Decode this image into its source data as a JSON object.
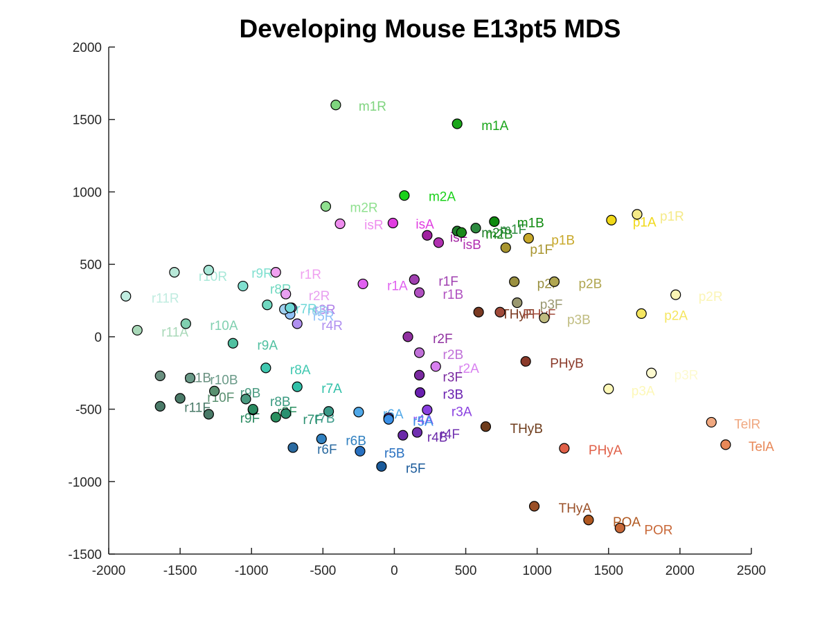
{
  "chart_data": {
    "type": "scatter",
    "title": "Developing Mouse E13pt5 MDS",
    "xlabel": "",
    "ylabel": "",
    "xlim": [
      -2000,
      2500
    ],
    "ylim": [
      -1500,
      2000
    ],
    "xticks": [
      "-2000",
      "-1500",
      "-1000",
      "-500",
      "0",
      "500",
      "1000",
      "1500",
      "2000",
      "2500"
    ],
    "yticks": [
      "2000",
      "1500",
      "1000",
      "500",
      "0",
      "-500",
      "-1000",
      "-1500"
    ],
    "xtick_values": [
      -2000,
      -1500,
      -1000,
      -500,
      0,
      500,
      1000,
      1500,
      2000,
      2500
    ],
    "ytick_values": [
      2000,
      1500,
      1000,
      500,
      0,
      -500,
      -1000,
      -1500
    ],
    "grid": false,
    "points": [
      {
        "label": "m1R",
        "x": -410,
        "y": 1600,
        "color": "#7fd47f"
      },
      {
        "label": "m1A",
        "x": 440,
        "y": 1470,
        "color": "#1aa61a"
      },
      {
        "label": "m2A",
        "x": 70,
        "y": 975,
        "color": "#1ad11a"
      },
      {
        "label": "m2R",
        "x": -480,
        "y": 900,
        "color": "#8fe08f"
      },
      {
        "label": "isR",
        "x": -380,
        "y": 780,
        "color": "#ee8cee"
      },
      {
        "label": "isA",
        "x": -10,
        "y": 785,
        "color": "#e03ce0"
      },
      {
        "label": "isF",
        "x": 230,
        "y": 700,
        "color": "#a020a0"
      },
      {
        "label": "isB",
        "x": 310,
        "y": 650,
        "color": "#b030b0"
      },
      {
        "label": "m2F",
        "x": 440,
        "y": 730,
        "color": "#1f7a2a"
      },
      {
        "label": "m2B",
        "x": 470,
        "y": 720,
        "color": "#1a8a1a"
      },
      {
        "label": "m1F",
        "x": 570,
        "y": 750,
        "color": "#2e8b40"
      },
      {
        "label": "m1B",
        "x": 700,
        "y": 795,
        "color": "#0f8a0f"
      },
      {
        "label": "p1F",
        "x": 780,
        "y": 615,
        "color": "#a8952f"
      },
      {
        "label": "p1B",
        "x": 940,
        "y": 680,
        "color": "#c8a82a"
      },
      {
        "label": "p1A",
        "x": 1520,
        "y": 805,
        "color": "#f0d818"
      },
      {
        "label": "p1R",
        "x": 1700,
        "y": 845,
        "color": "#f5ea88"
      },
      {
        "label": "p2F",
        "x": 840,
        "y": 380,
        "color": "#9a9040"
      },
      {
        "label": "p2B",
        "x": 1120,
        "y": 380,
        "color": "#b0a650"
      },
      {
        "label": "p3F",
        "x": 860,
        "y": 235,
        "color": "#9a9870"
      },
      {
        "label": "p3B",
        "x": 1050,
        "y": 130,
        "color": "#c0bc80"
      },
      {
        "label": "p2R",
        "x": 1970,
        "y": 290,
        "color": "#fbf5b5"
      },
      {
        "label": "p2A",
        "x": 1730,
        "y": 160,
        "color": "#f5e660"
      },
      {
        "label": "p3A",
        "x": 1500,
        "y": -360,
        "color": "#fdf8b8"
      },
      {
        "label": "p3R",
        "x": 1800,
        "y": -250,
        "color": "#fdfad0"
      },
      {
        "label": "THyF",
        "x": 590,
        "y": 170,
        "color": "#7a3a22"
      },
      {
        "label": "PHyF",
        "x": 740,
        "y": 170,
        "color": "#a04a3a"
      },
      {
        "label": "PHyB",
        "x": 920,
        "y": -170,
        "color": "#8a3a2a"
      },
      {
        "label": "THyB",
        "x": 640,
        "y": -620,
        "color": "#6e3c1c"
      },
      {
        "label": "PHyA",
        "x": 1190,
        "y": -770,
        "color": "#e06048"
      },
      {
        "label": "TelR",
        "x": 2220,
        "y": -590,
        "color": "#f0a880"
      },
      {
        "label": "TelA",
        "x": 2320,
        "y": -745,
        "color": "#e88858"
      },
      {
        "label": "THyA",
        "x": 980,
        "y": -1170,
        "color": "#9a5028"
      },
      {
        "label": "POA",
        "x": 1360,
        "y": -1265,
        "color": "#b05820"
      },
      {
        "label": "POR",
        "x": 1580,
        "y": -1320,
        "color": "#c86838"
      },
      {
        "label": "r1R",
        "x": -830,
        "y": 445,
        "color": "#f0a0f0"
      },
      {
        "label": "r1A",
        "x": -220,
        "y": 365,
        "color": "#e060f0"
      },
      {
        "label": "r1F",
        "x": 140,
        "y": 395,
        "color": "#a040b0"
      },
      {
        "label": "r1B",
        "x": 175,
        "y": 305,
        "color": "#b050c0"
      },
      {
        "label": "r2R",
        "x": -760,
        "y": 295,
        "color": "#e8a0f0"
      },
      {
        "label": "r2F",
        "x": 95,
        "y": 0,
        "color": "#9030a0"
      },
      {
        "label": "r2B",
        "x": 175,
        "y": -110,
        "color": "#c070d8"
      },
      {
        "label": "r2A",
        "x": 290,
        "y": -205,
        "color": "#d880f0"
      },
      {
        "label": "r3F",
        "x": 175,
        "y": -265,
        "color": "#7a2aa0"
      },
      {
        "label": "r3B",
        "x": 180,
        "y": -385,
        "color": "#6a20b0"
      },
      {
        "label": "r3A",
        "x": 230,
        "y": -505,
        "color": "#8a40e0"
      },
      {
        "label": "r3R",
        "x": -720,
        "y": 200,
        "color": "#b080e8"
      },
      {
        "label": "r4R",
        "x": -680,
        "y": 90,
        "color": "#b090f0"
      },
      {
        "label": "r4A",
        "x": -40,
        "y": -560,
        "color": "#9050f0"
      },
      {
        "label": "r4F",
        "x": 160,
        "y": -660,
        "color": "#7030b0"
      },
      {
        "label": "r4B",
        "x": 60,
        "y": -680,
        "color": "#6a28a8"
      },
      {
        "label": "r5R",
        "x": -730,
        "y": 155,
        "color": "#90c0f8"
      },
      {
        "label": "r5A",
        "x": -40,
        "y": -570,
        "color": "#3a90e8"
      },
      {
        "label": "r5B",
        "x": -240,
        "y": -790,
        "color": "#2870c0"
      },
      {
        "label": "r5F",
        "x": -90,
        "y": -895,
        "color": "#1a5a9a"
      },
      {
        "label": "r6R",
        "x": -770,
        "y": 190,
        "color": "#a0d0f0"
      },
      {
        "label": "r6A",
        "x": -250,
        "y": -520,
        "color": "#50a8e8"
      },
      {
        "label": "r6B",
        "x": -510,
        "y": -705,
        "color": "#3080c0"
      },
      {
        "label": "r6F",
        "x": -710,
        "y": -765,
        "color": "#2a6aa0"
      },
      {
        "label": "r7R",
        "x": -730,
        "y": 200,
        "color": "#70d8d8"
      },
      {
        "label": "r7A",
        "x": -680,
        "y": -345,
        "color": "#30c0a8"
      },
      {
        "label": "r7B",
        "x": -460,
        "y": -515,
        "color": "#3a9a88"
      },
      {
        "label": "r7F",
        "x": -760,
        "y": -530,
        "color": "#2a9070"
      },
      {
        "label": "r8R",
        "x": -890,
        "y": 220,
        "color": "#70d8c0"
      },
      {
        "label": "r8A",
        "x": -900,
        "y": -215,
        "color": "#40c8b0"
      },
      {
        "label": "r8B",
        "x": -990,
        "y": -505,
        "color": "#3a9a80"
      },
      {
        "label": "r8F",
        "x": -830,
        "y": -555,
        "color": "#2a9060"
      },
      {
        "label": "r9R",
        "x": -1060,
        "y": 350,
        "color": "#80e0d0"
      },
      {
        "label": "r9A",
        "x": -1130,
        "y": -45,
        "color": "#50c0a0"
      },
      {
        "label": "r9B",
        "x": -1040,
        "y": -430,
        "color": "#4a9a80"
      },
      {
        "label": "r9F",
        "x": -990,
        "y": -500,
        "color": "#2a8a60"
      },
      {
        "label": "r10R",
        "x": -1300,
        "y": 460,
        "color": "#a8e8d8"
      },
      {
        "label": "r10A",
        "x": -1460,
        "y": 90,
        "color": "#80d0b0"
      },
      {
        "label": "r10B",
        "x": -1430,
        "y": -285,
        "color": "#6a9a88"
      },
      {
        "label": "r10F",
        "x": -1260,
        "y": -375,
        "color": "#5a9070"
      },
      {
        "label": "r11R",
        "x": -1880,
        "y": 280,
        "color": "#c0ece0"
      },
      {
        "label": "r11A",
        "x": -1800,
        "y": 45,
        "color": "#a8d8b8"
      },
      {
        "label": "r11B",
        "x": -1640,
        "y": -270,
        "color": "#6a9080"
      },
      {
        "label": "r11F",
        "x": -1500,
        "y": -425,
        "color": "#4a7a68"
      },
      {
        "label": "",
        "x": -1540,
        "y": 445,
        "color": "#b8e8d8"
      },
      {
        "label": "",
        "x": -1640,
        "y": -480,
        "color": "#4a7a68"
      },
      {
        "label": "",
        "x": -1300,
        "y": -535,
        "color": "#4a7a68"
      }
    ],
    "labels": [
      {
        "text": "m1R",
        "x": -250,
        "y": 1595,
        "color": "#7fd47f"
      },
      {
        "text": "m1A",
        "x": 610,
        "y": 1460,
        "color": "#1aa61a"
      },
      {
        "text": "m2A",
        "x": 240,
        "y": 970,
        "color": "#1ad11a"
      },
      {
        "text": "m2R",
        "x": -310,
        "y": 895,
        "color": "#8fe08f"
      },
      {
        "text": "isR",
        "x": -210,
        "y": 775,
        "color": "#ee8cee"
      },
      {
        "text": "isA",
        "x": 150,
        "y": 780,
        "color": "#e03ce0"
      },
      {
        "text": "isF",
        "x": 390,
        "y": 690,
        "color": "#a020a0"
      },
      {
        "text": "isB",
        "x": 480,
        "y": 640,
        "color": "#b030b0"
      },
      {
        "text": "m2F",
        "x": 610,
        "y": 720,
        "color": "#1f7a2a"
      },
      {
        "text": "m2B",
        "x": 640,
        "y": 710,
        "color": "#1a8a1a"
      },
      {
        "text": "m1F",
        "x": 740,
        "y": 745,
        "color": "#2e8b40"
      },
      {
        "text": "m1B",
        "x": 860,
        "y": 790,
        "color": "#0f8a0f"
      },
      {
        "text": "p1F",
        "x": 950,
        "y": 605,
        "color": "#a8952f"
      },
      {
        "text": "p1B",
        "x": 1100,
        "y": 670,
        "color": "#c8a82a"
      },
      {
        "text": "p1A",
        "x": 1670,
        "y": 795,
        "color": "#f0d818"
      },
      {
        "text": "p1R",
        "x": 1860,
        "y": 835,
        "color": "#f5ea88"
      },
      {
        "text": "p2F",
        "x": 1000,
        "y": 370,
        "color": "#9a9040"
      },
      {
        "text": "p2B",
        "x": 1290,
        "y": 370,
        "color": "#b0a650"
      },
      {
        "text": "p3F",
        "x": 1020,
        "y": 225,
        "color": "#9a9870"
      },
      {
        "text": "p3B",
        "x": 1210,
        "y": 120,
        "color": "#c0bc80"
      },
      {
        "text": "p2R",
        "x": 2130,
        "y": 280,
        "color": "#fbf5b5"
      },
      {
        "text": "p2A",
        "x": 1890,
        "y": 150,
        "color": "#f5e660"
      },
      {
        "text": "p3A",
        "x": 1660,
        "y": -370,
        "color": "#fdf8b8"
      },
      {
        "text": "p3R",
        "x": 1960,
        "y": -260,
        "color": "#fdfad0"
      },
      {
        "text": "THyF",
        "x": 750,
        "y": 160,
        "color": "#7a3a22"
      },
      {
        "text": "PHyF",
        "x": 900,
        "y": 160,
        "color": "#a04a3a"
      },
      {
        "text": "PHyB",
        "x": 1090,
        "y": -180,
        "color": "#8a3a2a"
      },
      {
        "text": "THyB",
        "x": 810,
        "y": -630,
        "color": "#6e3c1c"
      },
      {
        "text": "PHyA",
        "x": 1360,
        "y": -780,
        "color": "#e06048"
      },
      {
        "text": "TelR",
        "x": 2380,
        "y": -600,
        "color": "#f0a880"
      },
      {
        "text": "TelA",
        "x": 2480,
        "y": -755,
        "color": "#e88858"
      },
      {
        "text": "THyA",
        "x": 1150,
        "y": -1180,
        "color": "#9a5028"
      },
      {
        "text": "POA",
        "x": 1530,
        "y": -1275,
        "color": "#b05820"
      },
      {
        "text": "POR",
        "x": 1750,
        "y": -1330,
        "color": "#c86838"
      },
      {
        "text": "r1R",
        "x": -660,
        "y": 435,
        "color": "#f0a0f0"
      },
      {
        "text": "r1A",
        "x": -50,
        "y": 355,
        "color": "#e060f0"
      },
      {
        "text": "r1F",
        "x": 310,
        "y": 385,
        "color": "#a040b0"
      },
      {
        "text": "r1B",
        "x": 340,
        "y": 295,
        "color": "#b050c0"
      },
      {
        "text": "r2R",
        "x": -600,
        "y": 285,
        "color": "#e8a0f0"
      },
      {
        "text": "r2F",
        "x": 270,
        "y": -10,
        "color": "#9030a0"
      },
      {
        "text": "r2B",
        "x": 340,
        "y": -120,
        "color": "#c070d8"
      },
      {
        "text": "r2A",
        "x": 450,
        "y": -215,
        "color": "#d880f0"
      },
      {
        "text": "r3F",
        "x": 340,
        "y": -275,
        "color": "#7a2aa0"
      },
      {
        "text": "r3B",
        "x": 340,
        "y": -395,
        "color": "#6a20b0"
      },
      {
        "text": "r3A",
        "x": 400,
        "y": -515,
        "color": "#8a40e0"
      },
      {
        "text": "r3R",
        "x": -560,
        "y": 190,
        "color": "#b080e8"
      },
      {
        "text": "r4R",
        "x": -510,
        "y": 80,
        "color": "#b090f0"
      },
      {
        "text": "r4A",
        "x": 130,
        "y": -570,
        "color": "#9050f0"
      },
      {
        "text": "r4F",
        "x": 320,
        "y": -670,
        "color": "#7030b0"
      },
      {
        "text": "r4B",
        "x": 230,
        "y": -690,
        "color": "#6a28a8"
      },
      {
        "text": "r5R",
        "x": -570,
        "y": 145,
        "color": "#90c0f8"
      },
      {
        "text": "r5A",
        "x": 130,
        "y": -580,
        "color": "#3a90e8"
      },
      {
        "text": "r5B",
        "x": -70,
        "y": -800,
        "color": "#2870c0"
      },
      {
        "text": "r5F",
        "x": 80,
        "y": -905,
        "color": "#1a5a9a"
      },
      {
        "text": "r6R",
        "x": -610,
        "y": 180,
        "color": "#a0d0f0"
      },
      {
        "text": "r6A",
        "x": -80,
        "y": -530,
        "color": "#50a8e8"
      },
      {
        "text": "r6B",
        "x": -340,
        "y": -715,
        "color": "#3080c0"
      },
      {
        "text": "r6F",
        "x": -540,
        "y": -775,
        "color": "#2a6aa0"
      },
      {
        "text": "r7R",
        "x": -690,
        "y": 195,
        "color": "#70d8d8"
      },
      {
        "text": "r7A",
        "x": -510,
        "y": -355,
        "color": "#30c0a8"
      },
      {
        "text": "r7B",
        "x": -560,
        "y": -560,
        "color": "#3a9a88"
      },
      {
        "text": "r7F",
        "x": -640,
        "y": -570,
        "color": "#2a9070"
      },
      {
        "text": "r8R",
        "x": -870,
        "y": 330,
        "color": "#70d8c0"
      },
      {
        "text": "r8A",
        "x": -730,
        "y": -225,
        "color": "#40c8b0"
      },
      {
        "text": "r8B",
        "x": -870,
        "y": -445,
        "color": "#3a9a80"
      },
      {
        "text": "r8F",
        "x": -820,
        "y": -515,
        "color": "#2a9060"
      },
      {
        "text": "r9R",
        "x": -1000,
        "y": 440,
        "color": "#80e0d0"
      },
      {
        "text": "r9A",
        "x": -960,
        "y": -55,
        "color": "#50c0a0"
      },
      {
        "text": "r9B",
        "x": -1080,
        "y": -385,
        "color": "#4a9a80"
      },
      {
        "text": "r9F",
        "x": -1080,
        "y": -560,
        "color": "#2a8a60"
      },
      {
        "text": "r10R",
        "x": -1370,
        "y": 420,
        "color": "#a8e8d8"
      },
      {
        "text": "r10A",
        "x": -1290,
        "y": 80,
        "color": "#80d0b0"
      },
      {
        "text": "r10B",
        "x": -1290,
        "y": -295,
        "color": "#6a9a88"
      },
      {
        "text": "r10F",
        "x": -1310,
        "y": -415,
        "color": "#5a9070"
      },
      {
        "text": "r11R",
        "x": -1700,
        "y": 270,
        "color": "#c0ece0"
      },
      {
        "text": "r11A",
        "x": -1630,
        "y": 35,
        "color": "#a8d8b8"
      },
      {
        "text": "r11B",
        "x": -1470,
        "y": -280,
        "color": "#6a9080"
      },
      {
        "text": "r11F",
        "x": -1470,
        "y": -485,
        "color": "#4a7a68"
      }
    ]
  }
}
